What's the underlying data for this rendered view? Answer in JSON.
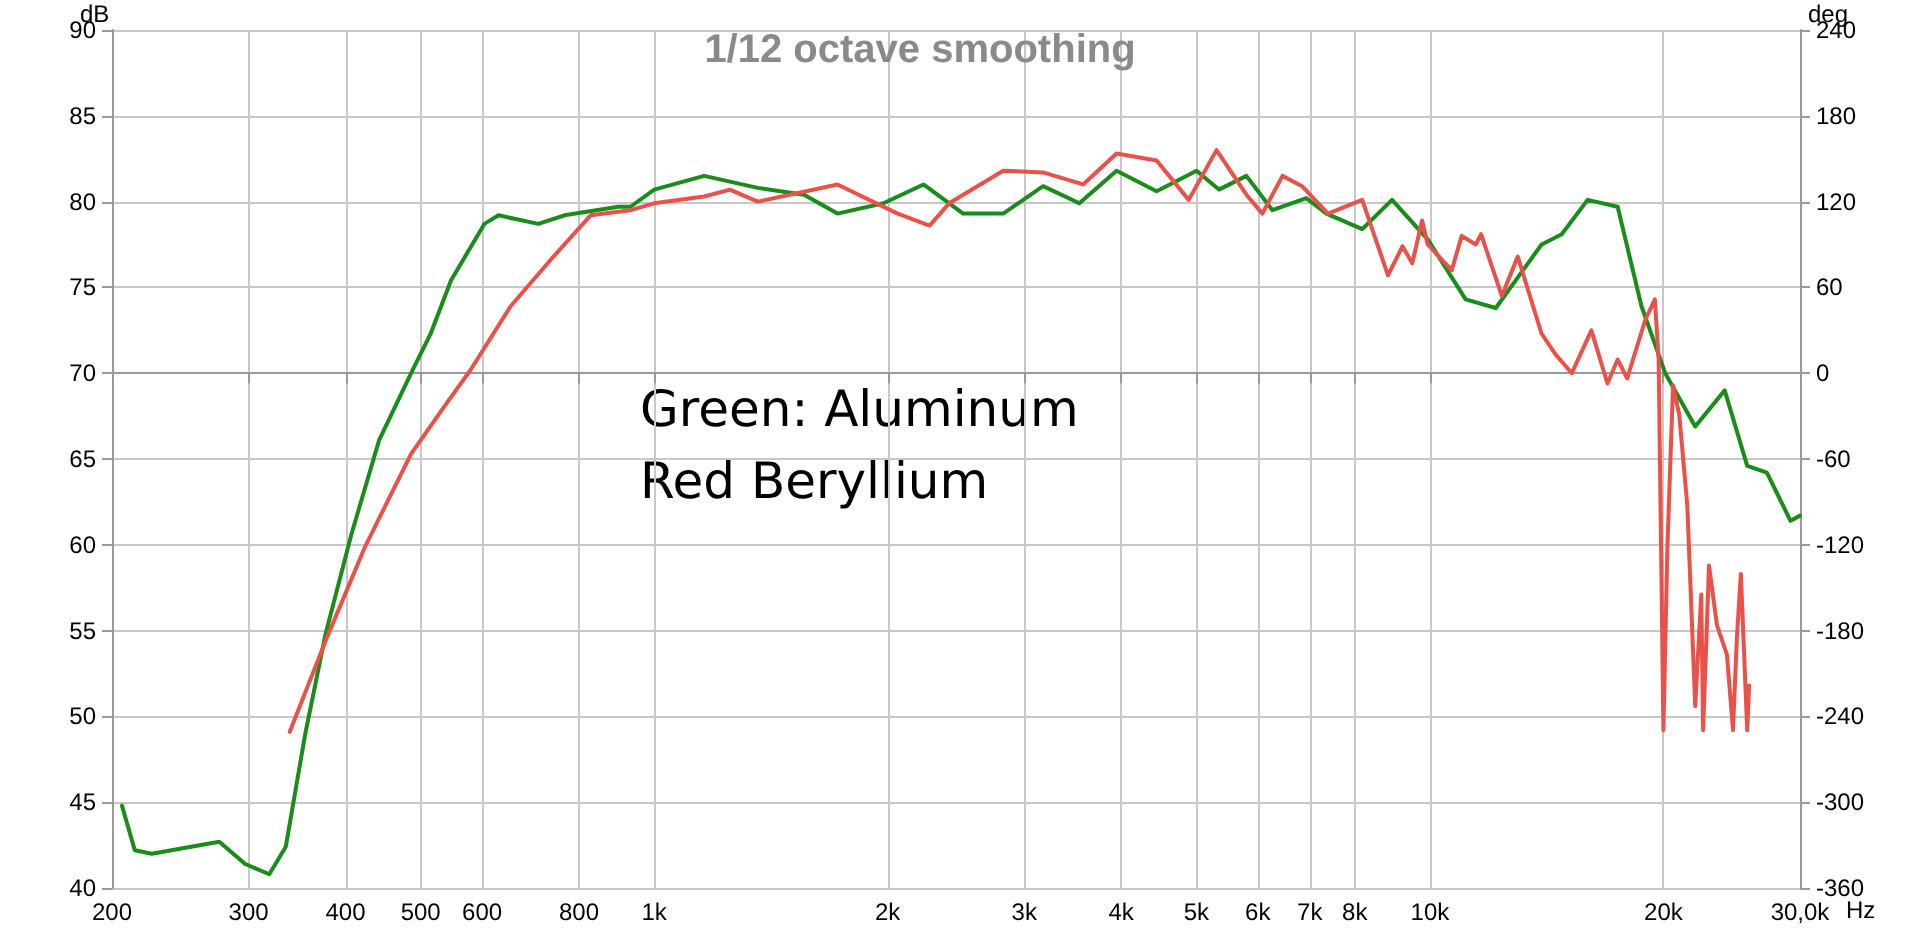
{
  "chart_data": {
    "type": "line",
    "title": "1/12 octave smoothing",
    "xlabel": "Hz",
    "ylabel": "dB",
    "y2label": "deg",
    "annotations": [
      "Green: Aluminum",
      "Red Beryllium"
    ],
    "log": "x",
    "grid": true,
    "marker": "none",
    "line_style": "solid",
    "xlim": [
      200,
      30000
    ],
    "xticks": [
      200,
      300,
      400,
      500,
      600,
      800,
      {
        "value": 1000,
        "label": "1k"
      },
      {
        "value": 2000,
        "label": "2k"
      },
      {
        "value": 3000,
        "label": "3k"
      },
      {
        "value": 4000,
        "label": "4k"
      },
      {
        "value": 5000,
        "label": "5k"
      },
      {
        "value": 6000,
        "label": "6k"
      },
      {
        "value": 7000,
        "label": "7k"
      },
      {
        "value": 8000,
        "label": "8k"
      },
      {
        "value": 10000,
        "label": "10k"
      },
      {
        "value": 20000,
        "label": "20k"
      },
      {
        "value": 30000,
        "label": "30,0k"
      }
    ],
    "ylim": [
      40,
      90
    ],
    "yticks": [
      40,
      45,
      50,
      55,
      60,
      65,
      70,
      75,
      80,
      85,
      90
    ],
    "y2lim": [
      -360,
      240
    ],
    "y2ticks": [
      -360,
      -300,
      -240,
      -180,
      -120,
      -60,
      0,
      60,
      120,
      180,
      240
    ],
    "series": [
      {
        "color": "#1a8c1a",
        "x": [
          206,
          214,
          225,
          275,
          297,
          319,
          335,
          355,
          377,
          407,
          442,
          486,
          515,
          547,
          604,
          630,
          709,
          766,
          899,
          932,
          1000,
          1160,
          1360,
          1560,
          1723,
          1975,
          2224,
          2502,
          2818,
          3172,
          3533,
          3945,
          4443,
          5003,
          5346,
          5800,
          6266,
          6929,
          7356,
          8180,
          8937,
          9935,
          11120,
          12160,
          13930,
          14790,
          15970,
          17460,
          18740,
          20110,
          21980,
          23990,
          25650,
          27190,
          29170,
          30000
        ],
        "values": [
          44.8,
          42.2,
          42.0,
          42.7,
          41.4,
          40.8,
          42.4,
          49.0,
          54.8,
          60.6,
          66.1,
          70.0,
          72.3,
          75.4,
          78.7,
          79.2,
          78.7,
          79.2,
          79.7,
          79.7,
          80.7,
          81.5,
          80.8,
          80.4,
          79.3,
          79.9,
          81.0,
          79.3,
          79.3,
          80.9,
          79.9,
          81.8,
          80.6,
          81.8,
          80.7,
          81.5,
          79.5,
          80.2,
          79.3,
          78.4,
          80.1,
          77.8,
          74.3,
          73.8,
          77.5,
          78.1,
          80.1,
          79.7,
          73.9,
          70.0,
          66.9,
          69.0,
          64.6,
          64.2,
          61.4,
          61.7
        ]
      },
      {
        "color": "#e8524a",
        "x": [
          339,
          377,
          424,
          486,
          537,
          580,
          653,
          735,
          828,
          932,
          1000,
          1160,
          1252,
          1360,
          1723,
          2060,
          2265,
          2400,
          2818,
          3172,
          3572,
          3945,
          4443,
          4887,
          5308,
          5800,
          6081,
          6457,
          6842,
          7390,
          8180,
          8830,
          9220,
          9490,
          9770,
          9935,
          10670,
          10990,
          11460,
          11640,
          12380,
          12980,
          13930,
          14520,
          15240,
          16150,
          16940,
          17460,
          17960,
          18950,
          19500,
          19720,
          20000,
          20240,
          20580,
          20960,
          21470,
          21980,
          22380,
          22500,
          22900,
          23450,
          24150,
          24590,
          24870,
          25170,
          25650,
          25800
        ],
        "values": [
          49.1,
          54.4,
          59.9,
          65.3,
          68.1,
          70.2,
          73.9,
          76.6,
          79.2,
          79.5,
          79.9,
          80.3,
          80.7,
          80.0,
          81.0,
          79.3,
          78.6,
          79.9,
          81.8,
          81.7,
          81.0,
          82.8,
          82.4,
          80.1,
          83.0,
          80.4,
          79.3,
          81.5,
          80.9,
          79.3,
          80.1,
          75.7,
          77.4,
          76.4,
          78.9,
          77.5,
          76.0,
          78.0,
          77.5,
          78.1,
          74.5,
          76.8,
          72.3,
          71.1,
          70.0,
          72.5,
          69.4,
          70.8,
          69.7,
          73.1,
          74.3,
          70.8,
          49.2,
          59.9,
          69.3,
          67.6,
          62.3,
          50.6,
          57.1,
          49.2,
          58.8,
          55.3,
          53.6,
          49.2,
          54.5,
          58.3,
          49.2,
          51.8
        ]
      }
    ]
  }
}
